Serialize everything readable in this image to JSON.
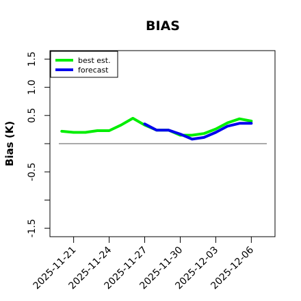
{
  "chart_data": {
    "type": "line",
    "title": "BIAS",
    "xlabel": "",
    "ylabel": "Bias (K)",
    "ylim": [
      -1.65,
      1.65
    ],
    "yticks": [
      -1.5,
      -1.0,
      -0.5,
      0.0,
      0.5,
      1.0,
      1.5
    ],
    "ytick_labels": [
      "-1.5",
      "",
      "-0.5",
      "",
      "0.5",
      "1.0",
      "1.5"
    ],
    "x_range": [
      "2025-11-19",
      "2025-12-08"
    ],
    "xticks": [
      "2025-11-21",
      "2025-11-24",
      "2025-11-27",
      "2025-11-30",
      "2025-12-03",
      "2025-12-06"
    ],
    "highlight_tick": "2025-11-27",
    "highlight_color": "#228B22",
    "reference_line": 0.0,
    "reference_color": "#555555",
    "legend": {
      "position": "top-left",
      "entries": [
        "best est.",
        "forecast"
      ]
    },
    "grid": false,
    "series": [
      {
        "name": "best est.",
        "color": "#00ee00",
        "x": [
          "2025-11-20",
          "2025-11-21",
          "2025-11-22",
          "2025-11-23",
          "2025-11-24",
          "2025-11-25",
          "2025-11-26",
          "2025-11-27",
          "2025-11-28",
          "2025-11-29",
          "2025-11-30",
          "2025-12-01",
          "2025-12-02",
          "2025-12-03",
          "2025-12-04",
          "2025-12-05",
          "2025-12-06"
        ],
        "values": [
          0.22,
          0.2,
          0.2,
          0.23,
          0.23,
          0.33,
          0.45,
          0.33,
          0.24,
          0.24,
          0.15,
          0.15,
          0.18,
          0.26,
          0.37,
          0.44,
          0.4
        ]
      },
      {
        "name": "forecast",
        "color": "#0000ee",
        "x": [
          "2025-11-27",
          "2025-11-28",
          "2025-11-29",
          "2025-11-30",
          "2025-12-01",
          "2025-12-02",
          "2025-12-03",
          "2025-12-04",
          "2025-12-05",
          "2025-12-06"
        ],
        "values": [
          0.35,
          0.24,
          0.24,
          0.17,
          0.08,
          0.11,
          0.2,
          0.31,
          0.36,
          0.36
        ]
      }
    ]
  }
}
